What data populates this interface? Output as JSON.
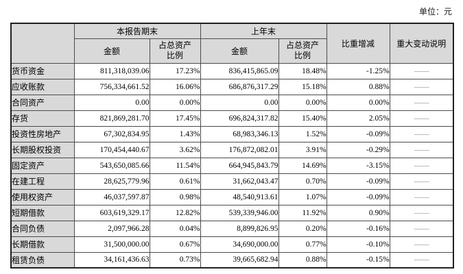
{
  "unit_label": "单位：元",
  "table": {
    "header": {
      "current_period_group": "本报告期末",
      "prior_period_group": "上年末",
      "amount_current": "金额",
      "pct_current": "占总资产\n比例",
      "amount_prior": "金额",
      "pct_prior": "占总资产\n比例",
      "change": "比重增减",
      "note": "重大变动说明"
    },
    "rows": [
      {
        "label": "货币资金",
        "amount_current": "811,318,039.06",
        "pct_current": "17.23%",
        "amount_prior": "836,415,865.09",
        "pct_prior": "18.48%",
        "change": "-1.25%",
        "note": "——"
      },
      {
        "label": "应收账款",
        "amount_current": "756,334,661.52",
        "pct_current": "16.06%",
        "amount_prior": "686,876,317.29",
        "pct_prior": "15.18%",
        "change": "0.88%",
        "note": "——"
      },
      {
        "label": "合同资产",
        "amount_current": "0.00",
        "pct_current": "0.00%",
        "amount_prior": "0.00",
        "pct_prior": "0.00%",
        "change": "0.00%",
        "note": "——"
      },
      {
        "label": "存货",
        "amount_current": "821,869,281.70",
        "pct_current": "17.45%",
        "amount_prior": "696,824,317.82",
        "pct_prior": "15.40%",
        "change": "2.05%",
        "note": "——"
      },
      {
        "label": "投资性房地产",
        "amount_current": "67,302,834.95",
        "pct_current": "1.43%",
        "amount_prior": "68,983,346.13",
        "pct_prior": "1.52%",
        "change": "-0.09%",
        "note": "——"
      },
      {
        "label": "长期股权投资",
        "amount_current": "170,454,440.67",
        "pct_current": "3.62%",
        "amount_prior": "176,872,082.01",
        "pct_prior": "3.91%",
        "change": "-0.29%",
        "note": "——"
      },
      {
        "label": "固定资产",
        "amount_current": "543,650,085.66",
        "pct_current": "11.54%",
        "amount_prior": "664,945,843.79",
        "pct_prior": "14.69%",
        "change": "-3.15%",
        "note": "——"
      },
      {
        "label": "在建工程",
        "amount_current": "28,625,779.96",
        "pct_current": "0.61%",
        "amount_prior": "31,662,043.47",
        "pct_prior": "0.70%",
        "change": "-0.09%",
        "note": "——"
      },
      {
        "label": "使用权资产",
        "amount_current": "46,037,597.87",
        "pct_current": "0.98%",
        "amount_prior": "48,540,913.61",
        "pct_prior": "1.07%",
        "change": "-0.09%",
        "note": "——"
      },
      {
        "label": "短期借款",
        "amount_current": "603,619,329.17",
        "pct_current": "12.82%",
        "amount_prior": "539,339,946.00",
        "pct_prior": "11.92%",
        "change": "0.90%",
        "note": "——"
      },
      {
        "label": "合同负债",
        "amount_current": "2,097,966.28",
        "pct_current": "0.04%",
        "amount_prior": "8,899,826.95",
        "pct_prior": "0.20%",
        "change": "-0.16%",
        "note": "——"
      },
      {
        "label": "长期借款",
        "amount_current": "31,500,000.00",
        "pct_current": "0.67%",
        "amount_prior": "34,690,000.00",
        "pct_prior": "0.77%",
        "change": "-0.10%",
        "note": "——"
      },
      {
        "label": "租赁负债",
        "amount_current": "34,161,436.63",
        "pct_current": "0.73%",
        "amount_prior": "39,665,682.94",
        "pct_prior": "0.88%",
        "change": "-0.15%",
        "note": "——"
      }
    ]
  }
}
